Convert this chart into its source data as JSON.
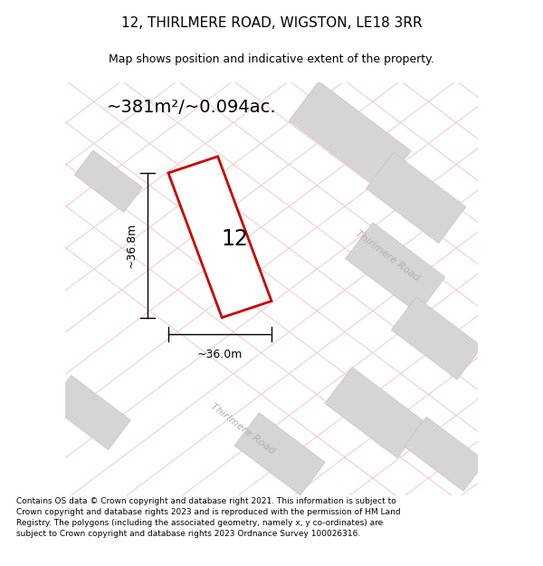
{
  "title_line1": "12, THIRLMERE ROAD, WIGSTON, LE18 3RR",
  "title_line2": "Map shows position and indicative extent of the property.",
  "area_text": "~381m²/~0.094ac.",
  "dim_width": "~36.0m",
  "dim_height": "~36.8m",
  "label_number": "12",
  "road_label1": "Thirlmere Road",
  "road_label2": "Thirlmere Road",
  "footer_text": "Contains OS data © Crown copyright and database right 2021. This information is subject to Crown copyright and database rights 2023 and is reproduced with the permission of HM Land Registry. The polygons (including the associated geometry, namely x, y co-ordinates) are subject to Crown copyright and database rights 2023 Ordnance Survey 100026316.",
  "map_bg": "#f2f0f0",
  "plot_color_fill": "#ffffff",
  "plot_color_edge": "#cc0000",
  "grid_line_color": "#f0c8c8",
  "building_fill": "#d6d4d4",
  "building_edge": "#c0bebe",
  "road_label_color": "#b0aeae",
  "fig_width": 6.0,
  "fig_height": 6.25,
  "title_fontsize": 11,
  "subtitle_fontsize": 9,
  "area_fontsize": 14,
  "footer_fontsize": 6.5
}
